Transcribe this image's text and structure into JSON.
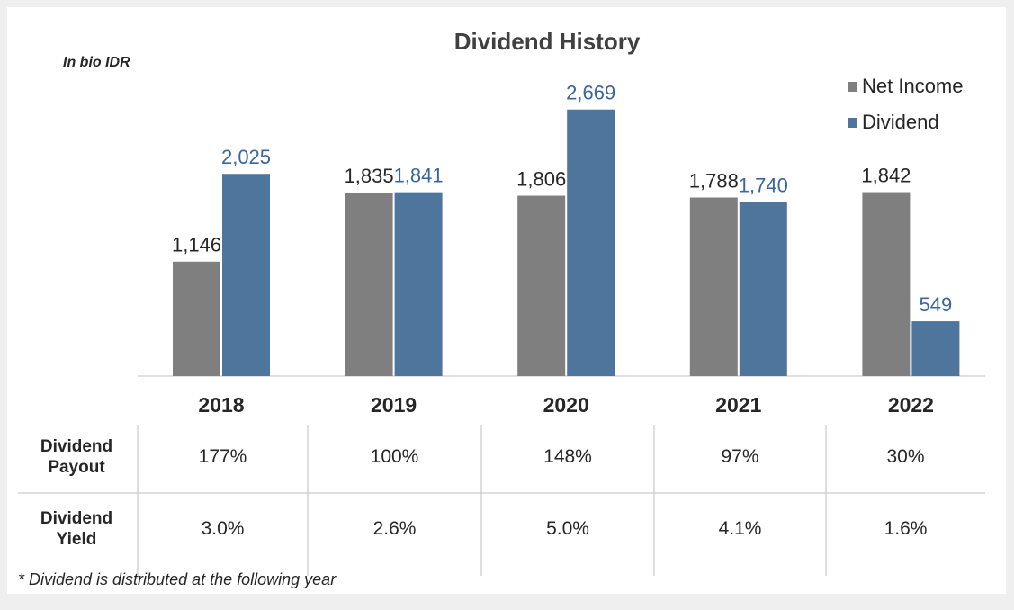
{
  "chart_data": {
    "type": "bar",
    "title": "Dividend History",
    "subtitle": "In bio IDR",
    "categories": [
      "2018",
      "2019",
      "2020",
      "2021",
      "2022"
    ],
    "series": [
      {
        "name": "Net Income",
        "color": "#7f7f7f",
        "values": [
          1146,
          1835,
          1806,
          1788,
          1842
        ],
        "value_labels": [
          "1,146",
          "1,835",
          "1,806",
          "1,788",
          "1,842"
        ]
      },
      {
        "name": "Dividend",
        "color": "#4e769c",
        "values": [
          2025,
          1841,
          2669,
          1740,
          549
        ],
        "value_labels": [
          "2,025",
          "1,841",
          "2,669",
          "1,740",
          "549"
        ]
      }
    ],
    "ylim": [
      0,
      3000
    ],
    "legend": "upper right"
  },
  "table": {
    "rows": [
      {
        "label": "Dividend Payout",
        "cells": [
          "177%",
          "100%",
          "148%",
          "97%",
          "30%"
        ]
      },
      {
        "label": "Dividend Yield",
        "cells": [
          "3.0%",
          "2.6%",
          "5.0%",
          "4.1%",
          "1.6%"
        ]
      }
    ]
  },
  "footnote": "* Dividend is distributed at the following year"
}
